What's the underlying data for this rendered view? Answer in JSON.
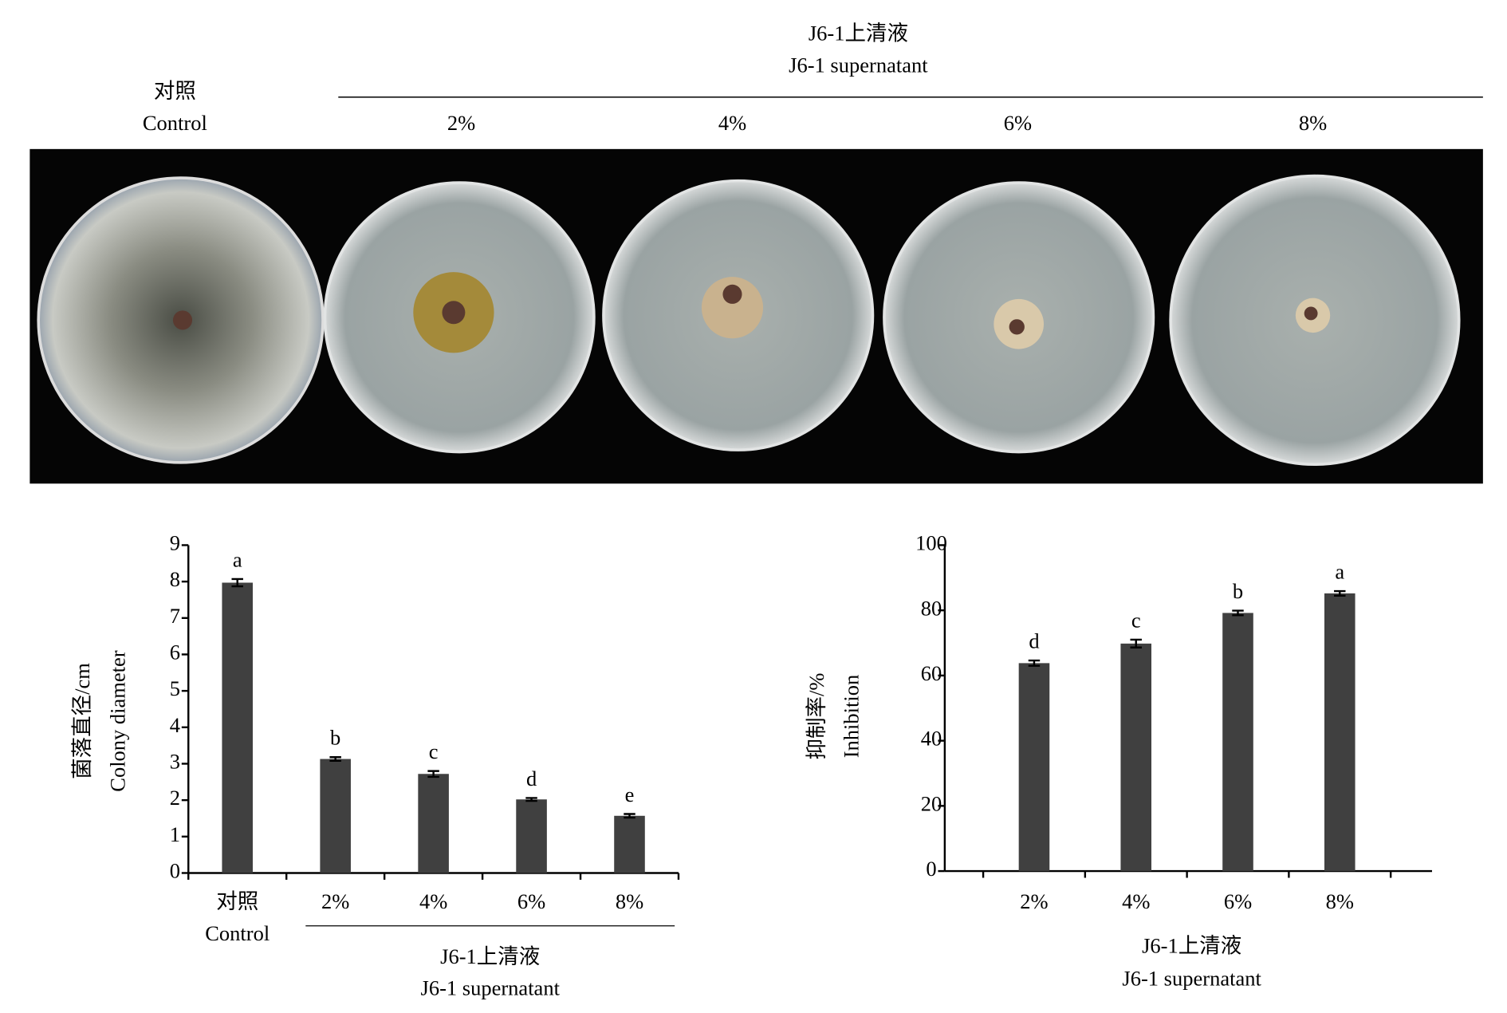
{
  "photo": {
    "control_label": [
      "对照",
      "Control"
    ],
    "group_label": [
      "J6-1上清液",
      "J6-1 supernatant"
    ],
    "concentrations": [
      "2%",
      "4%",
      "6%",
      "8%"
    ]
  },
  "chart_data": [
    {
      "type": "bar",
      "ylabel": [
        "菌落直径/cm",
        "Colony diameter"
      ],
      "categories": [
        [
          "对照",
          "Control"
        ],
        [
          "2%"
        ],
        [
          "4%"
        ],
        [
          "6%"
        ],
        [
          "8%"
        ]
      ],
      "group_label": [
        "J6-1上清液",
        "J6-1 supernatant"
      ],
      "values": [
        7.97,
        3.13,
        2.72,
        2.02,
        1.57
      ],
      "errors": [
        0.1,
        0.05,
        0.08,
        0.04,
        0.05
      ],
      "letters": [
        "a",
        "b",
        "c",
        "d",
        "e"
      ],
      "color": "#404040",
      "ylim": [
        0,
        9
      ],
      "yticks": [
        0,
        1,
        2,
        3,
        4,
        5,
        6,
        7,
        8,
        9
      ]
    },
    {
      "type": "bar",
      "ylabel": [
        "抑制率/%",
        "Inhibition"
      ],
      "categories": [
        [
          "2%"
        ],
        [
          "4%"
        ],
        [
          "6%"
        ],
        [
          "8%"
        ]
      ],
      "xlabel": [
        "J6-1上清液",
        "J6-1 supernatant"
      ],
      "values": [
        63.8,
        69.8,
        79.2,
        85.2
      ],
      "errors": [
        0.8,
        1.2,
        0.7,
        0.7
      ],
      "letters": [
        "d",
        "c",
        "b",
        "a"
      ],
      "color": "#404040",
      "ylim": [
        0,
        100
      ],
      "yticks": [
        0,
        20,
        40,
        60,
        80,
        100
      ]
    }
  ]
}
